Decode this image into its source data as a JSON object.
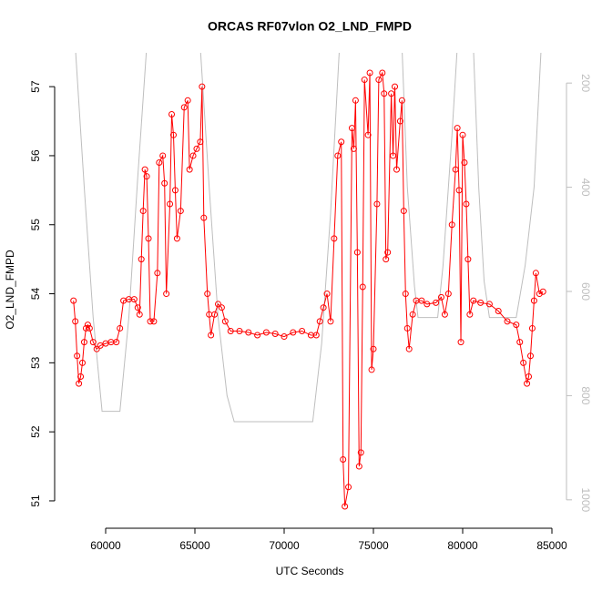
{
  "chart_data": {
    "type": "line",
    "title": "ORCAS RF07vlon O2_LND_FMPD",
    "x_label": "UTC Seconds",
    "y_label": "O2_LND_FMPD",
    "xlim": [
      57245,
      85714
    ],
    "xticks": [
      60000,
      65000,
      70000,
      75000,
      80000,
      85000
    ],
    "ylim": [
      50.63,
      57.49
    ],
    "yticks": [
      51,
      52,
      53,
      54,
      55,
      56,
      57
    ],
    "y2lim": [
      1051,
      142
    ],
    "y2ticks": [
      200,
      400,
      600,
      800,
      1000
    ],
    "series": [
      {
        "color": "#ff0000",
        "marker": "circle",
        "x": [
          58200,
          58300,
          58400,
          58500,
          58600,
          58700,
          58800,
          58900,
          59000,
          59100,
          59300,
          59500,
          59700,
          60000,
          60300,
          60600,
          60800,
          61000,
          61300,
          61600,
          61800,
          61900,
          62000,
          62100,
          62200,
          62300,
          62400,
          62500,
          62700,
          62900,
          63000,
          63200,
          63300,
          63400,
          63600,
          63700,
          63800,
          63900,
          64000,
          64200,
          64400,
          64600,
          64700,
          64900,
          65100,
          65300,
          65400,
          65500,
          65700,
          65800,
          65900,
          66100,
          66300,
          66500,
          66700,
          67000,
          67500,
          68000,
          68500,
          69000,
          69500,
          70000,
          70500,
          71000,
          71500,
          71800,
          72000,
          72200,
          72400,
          72600,
          72800,
          73000,
          73200,
          73300,
          73400,
          73600,
          73800,
          73900,
          74000,
          74100,
          74200,
          74300,
          74400,
          74500,
          74700,
          74800,
          74900,
          75000,
          75200,
          75300,
          75500,
          75600,
          75700,
          75800,
          76000,
          76100,
          76200,
          76300,
          76500,
          76600,
          76700,
          76800,
          76900,
          77000,
          77200,
          77400,
          77700,
          78000,
          78500,
          78800,
          79000,
          79200,
          79400,
          79600,
          79700,
          79800,
          79900,
          80000,
          80100,
          80200,
          80300,
          80400,
          80600,
          81000,
          81500,
          82000,
          82500,
          83000,
          83200,
          83400,
          83600,
          83700,
          83800,
          83900,
          84000,
          84100,
          84300,
          84500
        ],
        "values": [
          53.9,
          53.6,
          53.1,
          52.7,
          52.8,
          53.0,
          53.3,
          53.5,
          53.55,
          53.5,
          53.3,
          53.2,
          53.25,
          53.28,
          53.3,
          53.3,
          53.5,
          53.9,
          53.92,
          53.92,
          53.8,
          53.7,
          54.5,
          55.2,
          55.8,
          55.7,
          54.8,
          53.6,
          53.6,
          54.3,
          55.9,
          56.0,
          55.6,
          54.0,
          55.3,
          56.6,
          56.3,
          55.5,
          54.8,
          55.2,
          56.7,
          56.8,
          55.8,
          56.0,
          56.1,
          56.2,
          57.0,
          55.1,
          54.0,
          53.7,
          53.4,
          53.7,
          53.85,
          53.8,
          53.6,
          53.46,
          53.46,
          53.44,
          53.4,
          53.44,
          53.42,
          53.38,
          53.44,
          53.46,
          53.4,
          53.4,
          53.6,
          53.8,
          54.0,
          53.6,
          54.8,
          56.0,
          56.2,
          51.6,
          50.92,
          51.2,
          56.4,
          56.1,
          56.8,
          54.6,
          51.5,
          51.7,
          54.1,
          57.1,
          56.3,
          57.2,
          52.9,
          53.2,
          55.3,
          57.1,
          57.2,
          56.9,
          54.5,
          54.6,
          56.9,
          56.0,
          57.0,
          55.8,
          56.5,
          56.8,
          55.2,
          54.0,
          53.5,
          53.2,
          53.7,
          53.9,
          53.9,
          53.85,
          53.87,
          53.95,
          53.7,
          54.0,
          55.0,
          55.8,
          56.4,
          55.5,
          53.3,
          56.3,
          55.9,
          55.3,
          54.5,
          53.7,
          53.9,
          53.87,
          53.85,
          53.75,
          53.6,
          53.55,
          53.3,
          53.0,
          52.7,
          52.8,
          53.1,
          53.5,
          53.9,
          54.3,
          54.0,
          54.03
        ]
      },
      {
        "color": "#bebebe",
        "axis": "y2",
        "x": [
          58300,
          58800,
          59300,
          59800,
          60800,
          61300,
          61800,
          62300,
          65300,
          65800,
          66300,
          66800,
          67200,
          71600,
          72100,
          72600,
          73100,
          76600,
          76900,
          77300,
          77500,
          78600,
          78900,
          79400,
          79700,
          80600,
          80900,
          81200,
          81500,
          83000,
          83500,
          84000,
          84400
        ],
        "values": [
          130,
          400,
          650,
          830,
          830,
          650,
          380,
          130,
          130,
          400,
          650,
          800,
          850,
          850,
          700,
          450,
          130,
          130,
          400,
          590,
          650,
          650,
          550,
          300,
          130,
          130,
          400,
          580,
          650,
          650,
          550,
          400,
          130
        ]
      }
    ]
  }
}
